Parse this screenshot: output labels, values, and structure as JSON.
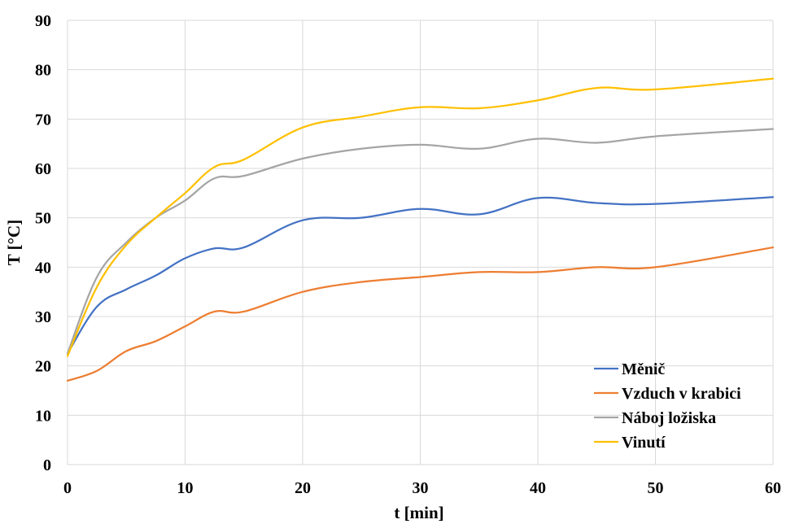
{
  "chart_data": {
    "type": "line",
    "title": "",
    "xlabel": "t [min]",
    "ylabel": "T [°C]",
    "xlim": [
      0,
      60
    ],
    "ylim": [
      0,
      90
    ],
    "xticks": [
      0,
      10,
      20,
      30,
      40,
      50,
      60
    ],
    "yticks": [
      0,
      10,
      20,
      30,
      40,
      50,
      60,
      70,
      80,
      90
    ],
    "grid": true,
    "legend_position": "bottom-right",
    "series": [
      {
        "name": "Měnič",
        "color": "#4472C4",
        "points": [
          [
            0,
            22.5
          ],
          [
            2.5,
            32
          ],
          [
            5,
            35.5
          ],
          [
            7.5,
            38.3
          ],
          [
            10,
            41.8
          ],
          [
            12.5,
            43.8
          ],
          [
            15,
            44
          ],
          [
            20,
            49.5
          ],
          [
            25,
            50
          ],
          [
            30,
            51.8
          ],
          [
            35,
            50.7
          ],
          [
            40,
            54
          ],
          [
            45,
            53
          ],
          [
            50,
            52.8
          ],
          [
            60,
            54.2
          ]
        ]
      },
      {
        "name": "Vzduch v krabici",
        "color": "#ED7D31",
        "points": [
          [
            0,
            17
          ],
          [
            2.5,
            19
          ],
          [
            5,
            23
          ],
          [
            7.5,
            25
          ],
          [
            10,
            28
          ],
          [
            12.5,
            31
          ],
          [
            15,
            31
          ],
          [
            20,
            35
          ],
          [
            25,
            37
          ],
          [
            30,
            38
          ],
          [
            35,
            39
          ],
          [
            40,
            39
          ],
          [
            45,
            40
          ],
          [
            50,
            40
          ],
          [
            60,
            44
          ]
        ]
      },
      {
        "name": "Náboj ložiska",
        "color": "#A5A5A5",
        "points": [
          [
            0,
            22.5
          ],
          [
            2.5,
            38
          ],
          [
            5,
            45
          ],
          [
            7.5,
            50
          ],
          [
            10,
            53.5
          ],
          [
            12.5,
            58
          ],
          [
            15,
            58.5
          ],
          [
            20,
            62
          ],
          [
            25,
            64
          ],
          [
            30,
            64.8
          ],
          [
            35,
            64
          ],
          [
            40,
            66
          ],
          [
            45,
            65.2
          ],
          [
            50,
            66.5
          ],
          [
            60,
            68
          ]
        ]
      },
      {
        "name": "Vinutí",
        "color": "#FFC000",
        "points": [
          [
            0,
            22
          ],
          [
            2.5,
            36
          ],
          [
            5,
            44.5
          ],
          [
            7.5,
            50
          ],
          [
            10,
            55
          ],
          [
            12.5,
            60.3
          ],
          [
            15,
            61.8
          ],
          [
            20,
            68.3
          ],
          [
            25,
            70.5
          ],
          [
            30,
            72.4
          ],
          [
            35,
            72.2
          ],
          [
            40,
            73.8
          ],
          [
            45,
            76.3
          ],
          [
            50,
            76
          ],
          [
            60,
            78.2
          ]
        ]
      }
    ]
  }
}
